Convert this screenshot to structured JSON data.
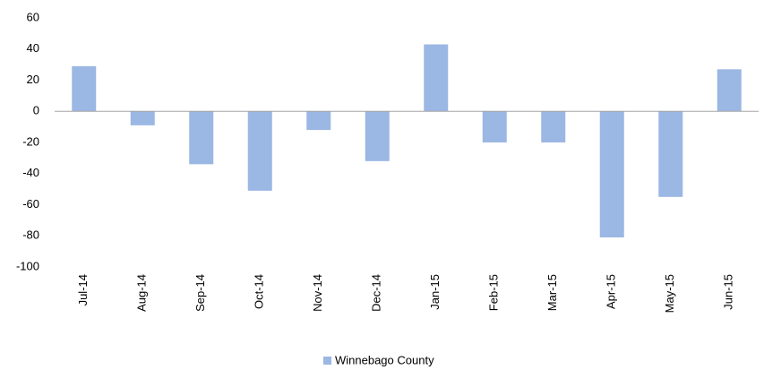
{
  "chart_data": {
    "type": "bar",
    "categories": [
      "Jul-14",
      "Aug-14",
      "Sep-14",
      "Oct-14",
      "Nov-14",
      "Dec-14",
      "Jan-15",
      "Feb-15",
      "Mar-15",
      "Apr-15",
      "May-15",
      "Jun-15"
    ],
    "series": [
      {
        "name": "Winnebago County",
        "color": "#9bb7e3",
        "values": [
          29,
          -9,
          -34,
          -51,
          -12,
          -32,
          43,
          -20,
          -20,
          -81,
          -55,
          27
        ]
      }
    ],
    "ylim": [
      -100,
      60
    ],
    "yticks": [
      -100,
      -80,
      -60,
      -40,
      -20,
      0,
      20,
      40,
      60
    ],
    "grid": false,
    "legend": "bottom"
  }
}
